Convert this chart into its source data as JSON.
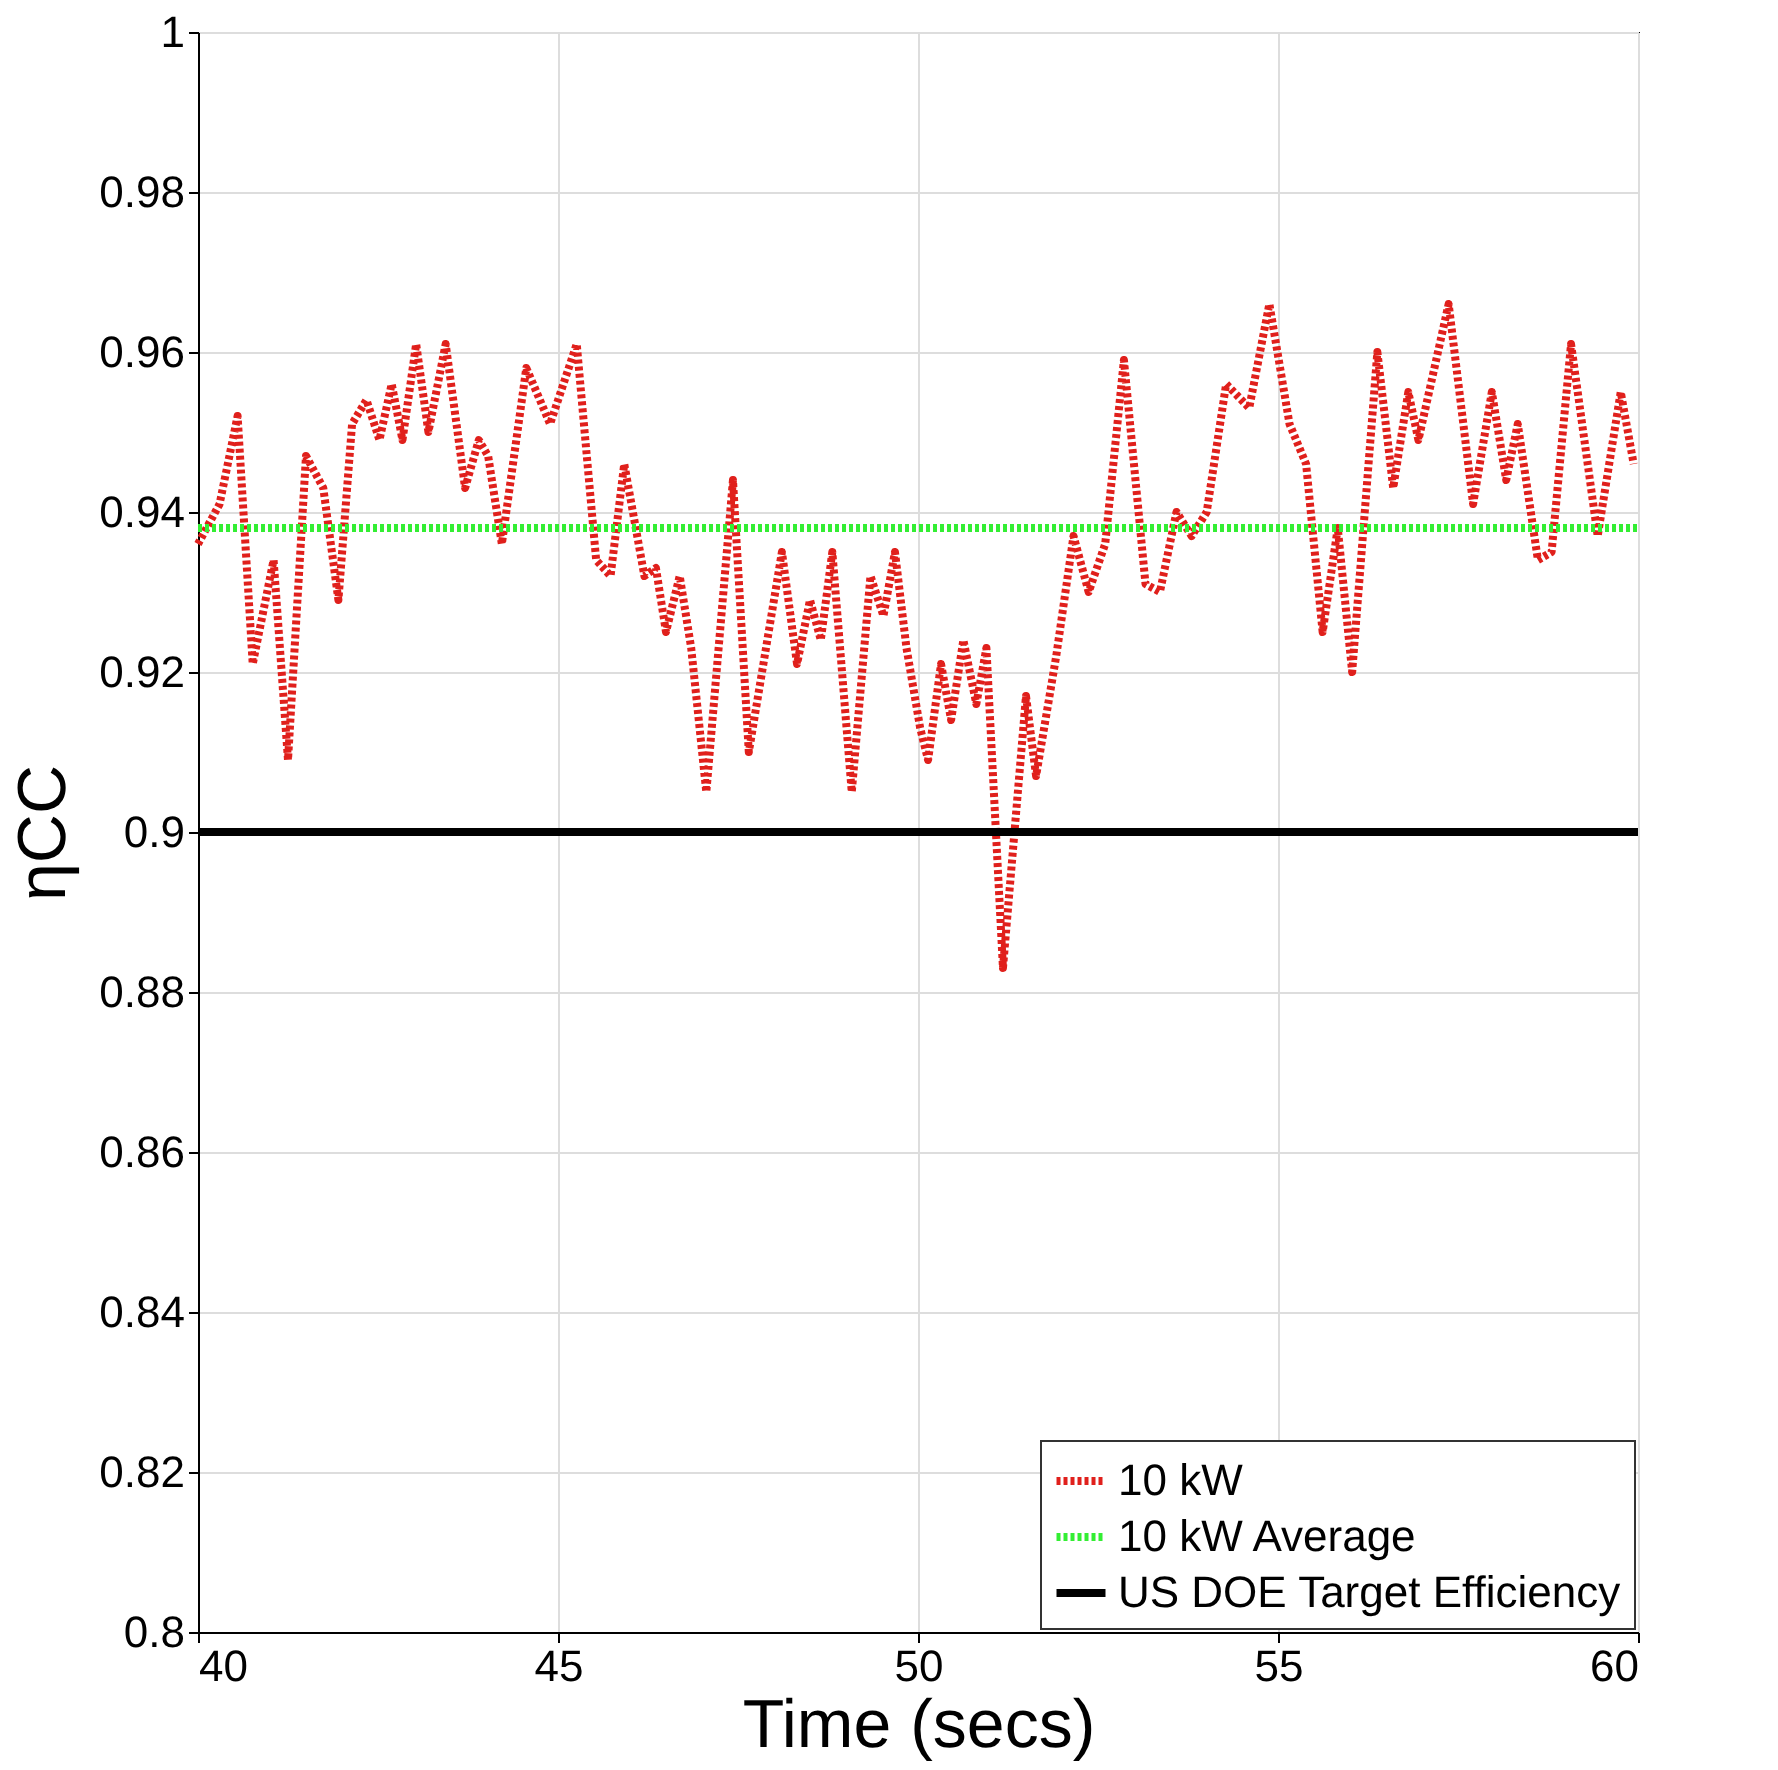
{
  "chart_data": {
    "type": "line",
    "xlabel": "Time (secs)",
    "ylabel": "ηCC",
    "xlim": [
      40,
      60
    ],
    "xticks": [
      40,
      45,
      50,
      55,
      60
    ],
    "ylim": [
      0.8,
      1
    ],
    "yticks": [
      0.8,
      0.82,
      0.84,
      0.86,
      0.88,
      0.9,
      0.92,
      0.94,
      0.96,
      0.98,
      1
    ],
    "grid": true,
    "legend": "bottom right",
    "marker": "none",
    "series": [
      {
        "name": "10 kW",
        "color": "#e0201c",
        "line_style": "dotted",
        "x": [
          40.0,
          40.3,
          40.55,
          40.76,
          41.05,
          41.25,
          41.5,
          41.74,
          41.95,
          42.14,
          42.34,
          42.52,
          42.69,
          42.84,
          43.03,
          43.2,
          43.44,
          43.71,
          43.9,
          44.03,
          44.22,
          44.56,
          44.89,
          45.26,
          45.53,
          45.73,
          45.92,
          46.2,
          46.36,
          46.5,
          46.69,
          46.85,
          47.06,
          47.43,
          47.65,
          48.11,
          48.32,
          48.5,
          48.65,
          48.81,
          49.08,
          49.34,
          49.52,
          49.68,
          49.84,
          50.03,
          50.14,
          50.32,
          50.46,
          50.63,
          50.81,
          50.95,
          51.18,
          51.5,
          51.64,
          51.92,
          52.16,
          52.37,
          52.6,
          52.86,
          53.16,
          53.36,
          53.59,
          53.8,
          54.01,
          54.28,
          54.6,
          54.88,
          55.16,
          55.39,
          55.62,
          55.83,
          56.03,
          56.38,
          56.6,
          56.81,
          56.95,
          57.37,
          57.71,
          57.97,
          58.17,
          58.33,
          58.61,
          58.8,
          59.07,
          59.44,
          59.76,
          59.94
        ],
        "values": [
          0.936,
          0.941,
          0.952,
          0.921,
          0.934,
          0.909,
          0.947,
          0.943,
          0.929,
          0.951,
          0.954,
          0.949,
          0.956,
          0.949,
          0.961,
          0.95,
          0.961,
          0.943,
          0.949,
          0.947,
          0.936,
          0.958,
          0.951,
          0.961,
          0.934,
          0.932,
          0.946,
          0.932,
          0.933,
          0.925,
          0.932,
          0.923,
          0.905,
          0.944,
          0.91,
          0.935,
          0.921,
          0.929,
          0.924,
          0.935,
          0.905,
          0.932,
          0.927,
          0.935,
          0.923,
          0.913,
          0.909,
          0.921,
          0.914,
          0.924,
          0.916,
          0.923,
          0.883,
          0.917,
          0.907,
          0.922,
          0.937,
          0.93,
          0.936,
          0.959,
          0.931,
          0.93,
          0.94,
          0.937,
          0.94,
          0.956,
          0.953,
          0.966,
          0.951,
          0.946,
          0.925,
          0.938,
          0.92,
          0.96,
          0.943,
          0.955,
          0.949,
          0.966,
          0.941,
          0.955,
          0.944,
          0.951,
          0.934,
          0.935,
          0.961,
          0.937,
          0.955,
          0.946
        ]
      },
      {
        "name": "10 kW Average",
        "color": "#33ee33",
        "line_style": "dotted",
        "x": [
          40,
          60
        ],
        "values": [
          0.938,
          0.938
        ]
      },
      {
        "name": "US DOE Target Efficiency",
        "color": "#000000",
        "line_style": "solid",
        "x": [
          40,
          60
        ],
        "values": [
          0.9,
          0.9
        ]
      }
    ]
  }
}
